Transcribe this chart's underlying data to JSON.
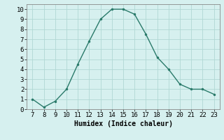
{
  "x": [
    7,
    8,
    9,
    10,
    11,
    12,
    13,
    14,
    15,
    16,
    17,
    18,
    19,
    20,
    21,
    22,
    23
  ],
  "y": [
    1.0,
    0.2,
    0.8,
    2.0,
    4.5,
    6.8,
    9.0,
    10.0,
    10.0,
    9.5,
    7.5,
    5.2,
    4.0,
    2.5,
    2.0,
    2.0,
    1.5
  ],
  "line_color": "#2a7a6a",
  "marker_color": "#2a7a6a",
  "bg_color": "#d6f0ef",
  "grid_color": "#b0d8d4",
  "xlabel": "Humidex (Indice chaleur)",
  "xlabel_fontsize": 7,
  "tick_fontsize": 6.5,
  "xlim": [
    6.5,
    23.5
  ],
  "ylim": [
    0,
    10.5
  ],
  "yticks": [
    0,
    1,
    2,
    3,
    4,
    5,
    6,
    7,
    8,
    9,
    10
  ],
  "xticks": [
    7,
    8,
    9,
    10,
    11,
    12,
    13,
    14,
    15,
    16,
    17,
    18,
    19,
    20,
    21,
    22,
    23
  ]
}
